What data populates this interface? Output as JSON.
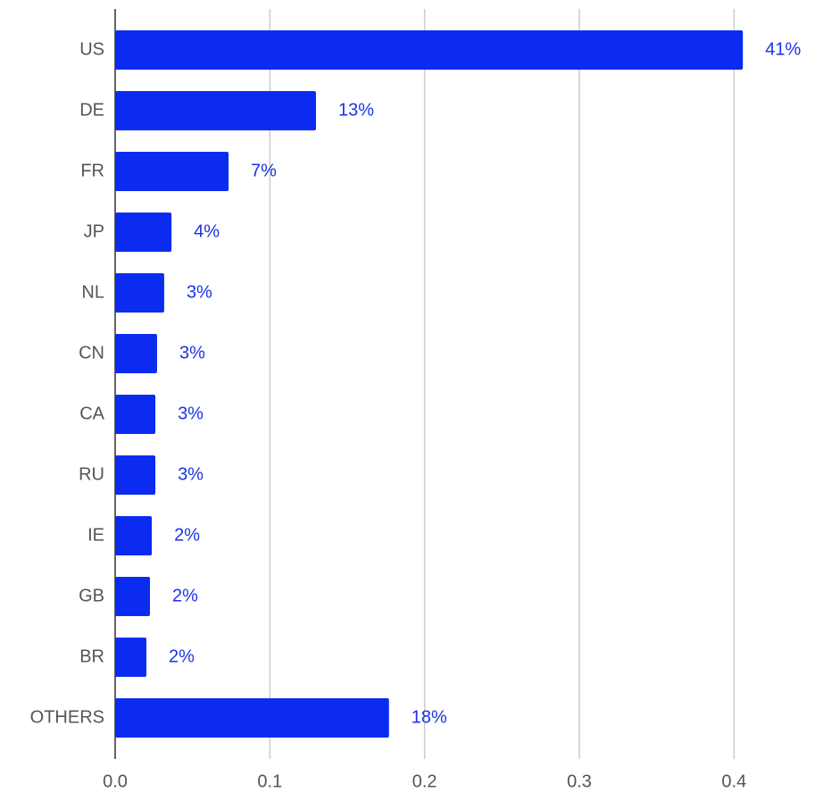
{
  "chart_data": {
    "type": "barh",
    "categories": [
      "US",
      "DE",
      "FR",
      "JP",
      "NL",
      "CN",
      "CA",
      "RU",
      "IE",
      "GB",
      "BR",
      "OTHERS"
    ],
    "values": [
      0.4057,
      0.1298,
      0.0733,
      0.0364,
      0.0317,
      0.0271,
      0.026,
      0.026,
      0.0237,
      0.0225,
      0.0202,
      0.177
    ],
    "value_labels": [
      "41%",
      "13%",
      "7%",
      "4%",
      "3%",
      "3%",
      "3%",
      "3%",
      "2%",
      "2%",
      "2%",
      "18%"
    ],
    "color": "#0b2cf0",
    "xlim": [
      0,
      0.45
    ],
    "xticks": [
      {
        "value": 0,
        "label": "0.0"
      },
      0.1,
      0.2,
      0.3,
      0.4
    ],
    "grid": true
  }
}
